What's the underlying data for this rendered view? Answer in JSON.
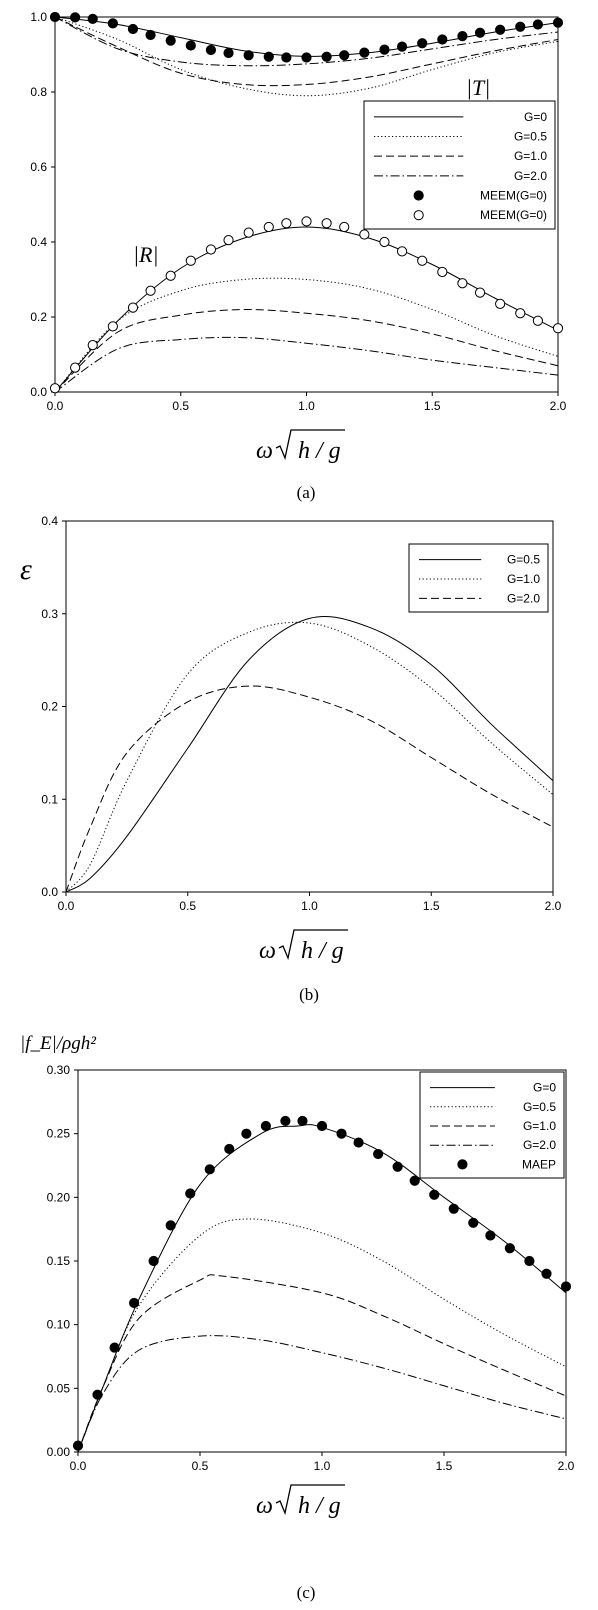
{
  "figure": {
    "captions": [
      "(a)",
      "(b)",
      "(c)"
    ]
  },
  "chart_data": [
    {
      "type": "line",
      "panel": "(a)",
      "xlabel": "ω√(h/g)",
      "ylabel": "",
      "xlim": [
        0,
        2.0
      ],
      "ylim": [
        0,
        1.0
      ],
      "xticks": [
        "0.0",
        "0.5",
        "1.0",
        "1.5",
        "2.0"
      ],
      "yticks": [
        "0.0",
        "0.2",
        "0.4",
        "0.6",
        "0.8",
        "1.0"
      ],
      "grid": false,
      "legend_position": "right",
      "annotations": [
        "|T|",
        "|R|"
      ],
      "series": [
        {
          "name": "G=0",
          "style": "solid",
          "group": "T",
          "x": [
            0,
            0.25,
            0.5,
            0.75,
            1.0,
            1.25,
            1.5,
            1.75,
            2.0
          ],
          "y": [
            1.0,
            0.98,
            0.945,
            0.91,
            0.895,
            0.905,
            0.93,
            0.96,
            0.985
          ]
        },
        {
          "name": "G=0.5",
          "style": "dotted",
          "group": "T",
          "x": [
            0,
            0.25,
            0.5,
            0.75,
            1.0,
            1.25,
            1.5,
            1.75,
            2.0
          ],
          "y": [
            1.0,
            0.94,
            0.86,
            0.81,
            0.79,
            0.81,
            0.86,
            0.905,
            0.935
          ]
        },
        {
          "name": "G=1.0",
          "style": "dashed",
          "group": "T",
          "x": [
            0,
            0.25,
            0.5,
            0.75,
            1.0,
            1.25,
            1.5,
            1.75,
            2.0
          ],
          "y": [
            1.0,
            0.92,
            0.85,
            0.82,
            0.82,
            0.84,
            0.875,
            0.91,
            0.94
          ]
        },
        {
          "name": "G=2.0",
          "style": "dashdot",
          "group": "T",
          "x": [
            0,
            0.25,
            0.5,
            0.75,
            1.0,
            1.25,
            1.5,
            1.75,
            2.0
          ],
          "y": [
            1.0,
            0.915,
            0.88,
            0.87,
            0.875,
            0.89,
            0.915,
            0.94,
            0.96
          ]
        },
        {
          "name": "G=0",
          "style": "solid",
          "group": "R",
          "x": [
            0,
            0.25,
            0.5,
            0.75,
            1.0,
            1.25,
            1.5,
            1.75,
            2.0
          ],
          "y": [
            0.0,
            0.19,
            0.33,
            0.41,
            0.44,
            0.41,
            0.34,
            0.25,
            0.165
          ]
        },
        {
          "name": "G=0.5",
          "style": "dotted",
          "group": "R",
          "x": [
            0,
            0.25,
            0.5,
            0.75,
            1.0,
            1.25,
            1.5,
            1.75,
            2.0
          ],
          "y": [
            0.0,
            0.19,
            0.27,
            0.3,
            0.3,
            0.275,
            0.22,
            0.15,
            0.095
          ]
        },
        {
          "name": "G=1.0",
          "style": "dashed",
          "group": "R",
          "x": [
            0,
            0.25,
            0.5,
            0.75,
            1.0,
            1.25,
            1.5,
            1.75,
            2.0
          ],
          "y": [
            0.0,
            0.16,
            0.205,
            0.22,
            0.21,
            0.19,
            0.155,
            0.11,
            0.07
          ]
        },
        {
          "name": "G=2.0",
          "style": "dashdot",
          "group": "R",
          "x": [
            0,
            0.25,
            0.5,
            0.75,
            1.0,
            1.25,
            1.5,
            1.75,
            2.0
          ],
          "y": [
            0.0,
            0.115,
            0.14,
            0.145,
            0.13,
            0.11,
            0.085,
            0.065,
            0.045
          ]
        },
        {
          "name": "MEEM(G=0)",
          "style": "filled-circle",
          "group": "T",
          "x": [
            0.0,
            0.08,
            0.15,
            0.23,
            0.31,
            0.38,
            0.46,
            0.54,
            0.62,
            0.69,
            0.77,
            0.85,
            0.92,
            1.0,
            1.08,
            1.15,
            1.23,
            1.31,
            1.38,
            1.46,
            1.54,
            1.62,
            1.69,
            1.77,
            1.85,
            1.92,
            2.0
          ],
          "y": [
            1.0,
            0.999,
            0.995,
            0.983,
            0.968,
            0.952,
            0.937,
            0.924,
            0.912,
            0.904,
            0.898,
            0.894,
            0.892,
            0.892,
            0.894,
            0.898,
            0.905,
            0.913,
            0.921,
            0.93,
            0.94,
            0.949,
            0.958,
            0.966,
            0.974,
            0.98,
            0.985
          ]
        },
        {
          "name": "MEEM(G=0)",
          "style": "open-circle",
          "group": "R",
          "x": [
            0.0,
            0.08,
            0.15,
            0.23,
            0.31,
            0.38,
            0.46,
            0.54,
            0.62,
            0.69,
            0.77,
            0.85,
            0.92,
            1.0,
            1.08,
            1.15,
            1.23,
            1.31,
            1.38,
            1.46,
            1.54,
            1.62,
            1.69,
            1.77,
            1.85,
            1.92,
            2.0
          ],
          "y": [
            0.01,
            0.065,
            0.125,
            0.175,
            0.225,
            0.27,
            0.31,
            0.35,
            0.38,
            0.405,
            0.425,
            0.44,
            0.45,
            0.455,
            0.45,
            0.44,
            0.42,
            0.4,
            0.375,
            0.35,
            0.32,
            0.29,
            0.265,
            0.235,
            0.21,
            0.19,
            0.17
          ]
        }
      ]
    },
    {
      "type": "line",
      "panel": "(b)",
      "xlabel": "ω√(h/g)",
      "ylabel": "ε",
      "xlim": [
        0,
        2.0
      ],
      "ylim": [
        0,
        0.4
      ],
      "xticks": [
        "0.0",
        "0.5",
        "1.0",
        "1.5",
        "2.0"
      ],
      "yticks": [
        "0.0",
        "0.1",
        "0.2",
        "0.3",
        "0.4"
      ],
      "grid": false,
      "legend_position": "top-right",
      "series": [
        {
          "name": "G=0.5",
          "style": "solid",
          "x": [
            0,
            0.1,
            0.25,
            0.5,
            0.75,
            1.0,
            1.25,
            1.5,
            1.75,
            2.0
          ],
          "y": [
            0.0,
            0.015,
            0.06,
            0.155,
            0.25,
            0.295,
            0.285,
            0.245,
            0.18,
            0.12
          ]
        },
        {
          "name": "G=1.0",
          "style": "dotted",
          "x": [
            0,
            0.1,
            0.25,
            0.5,
            0.75,
            1.0,
            1.25,
            1.5,
            1.75,
            2.0
          ],
          "y": [
            0.0,
            0.03,
            0.12,
            0.235,
            0.28,
            0.29,
            0.265,
            0.22,
            0.16,
            0.105
          ]
        },
        {
          "name": "G=2.0",
          "style": "dashed",
          "x": [
            0,
            0.1,
            0.25,
            0.5,
            0.75,
            1.0,
            1.25,
            1.5,
            1.75,
            2.0
          ],
          "y": [
            0.0,
            0.07,
            0.15,
            0.205,
            0.222,
            0.21,
            0.185,
            0.145,
            0.105,
            0.07
          ]
        }
      ]
    },
    {
      "type": "line",
      "panel": "(c)",
      "xlabel": "ω√(h/g)",
      "ylabel": "|f_E|/ρgh²",
      "xlim": [
        0,
        2.0
      ],
      "ylim": [
        0,
        0.3
      ],
      "xticks": [
        "0.0",
        "0.5",
        "1.0",
        "1.5",
        "2.0"
      ],
      "yticks": [
        "0.00",
        "0.05",
        "0.10",
        "0.15",
        "0.20",
        "0.25",
        "0.30"
      ],
      "grid": false,
      "legend_position": "top-right",
      "series": [
        {
          "name": "G=0",
          "style": "solid",
          "x": [
            0,
            0.1,
            0.25,
            0.5,
            0.75,
            0.9,
            1.0,
            1.25,
            1.5,
            1.75,
            2.0
          ],
          "y": [
            0.0,
            0.05,
            0.12,
            0.21,
            0.25,
            0.256,
            0.255,
            0.235,
            0.2,
            0.165,
            0.125
          ]
        },
        {
          "name": "G=0.5",
          "style": "dotted",
          "x": [
            0,
            0.1,
            0.25,
            0.5,
            0.7,
            1.0,
            1.25,
            1.5,
            1.75,
            2.0
          ],
          "y": [
            0.0,
            0.05,
            0.115,
            0.17,
            0.183,
            0.172,
            0.15,
            0.12,
            0.092,
            0.067
          ]
        },
        {
          "name": "G=1.0",
          "style": "dashed",
          "x": [
            0,
            0.1,
            0.25,
            0.5,
            0.6,
            1.0,
            1.25,
            1.5,
            1.75,
            2.0
          ],
          "y": [
            0.0,
            0.05,
            0.105,
            0.135,
            0.138,
            0.125,
            0.107,
            0.085,
            0.064,
            0.044
          ]
        },
        {
          "name": "G=2.0",
          "style": "dashdot",
          "x": [
            0,
            0.1,
            0.25,
            0.5,
            0.75,
            1.0,
            1.25,
            1.5,
            1.75,
            2.0
          ],
          "y": [
            0.0,
            0.045,
            0.08,
            0.091,
            0.088,
            0.078,
            0.066,
            0.052,
            0.038,
            0.026
          ]
        },
        {
          "name": "MAEP",
          "style": "filled-circle",
          "x": [
            0.0,
            0.08,
            0.15,
            0.23,
            0.31,
            0.38,
            0.46,
            0.54,
            0.62,
            0.69,
            0.77,
            0.85,
            0.92,
            1.0,
            1.08,
            1.15,
            1.23,
            1.31,
            1.38,
            1.46,
            1.54,
            1.62,
            1.69,
            1.77,
            1.85,
            1.92,
            2.0
          ],
          "y": [
            0.005,
            0.045,
            0.082,
            0.117,
            0.15,
            0.178,
            0.203,
            0.222,
            0.238,
            0.25,
            0.256,
            0.26,
            0.26,
            0.256,
            0.25,
            0.243,
            0.234,
            0.224,
            0.213,
            0.202,
            0.191,
            0.18,
            0.17,
            0.16,
            0.15,
            0.14,
            0.13
          ]
        }
      ]
    }
  ]
}
